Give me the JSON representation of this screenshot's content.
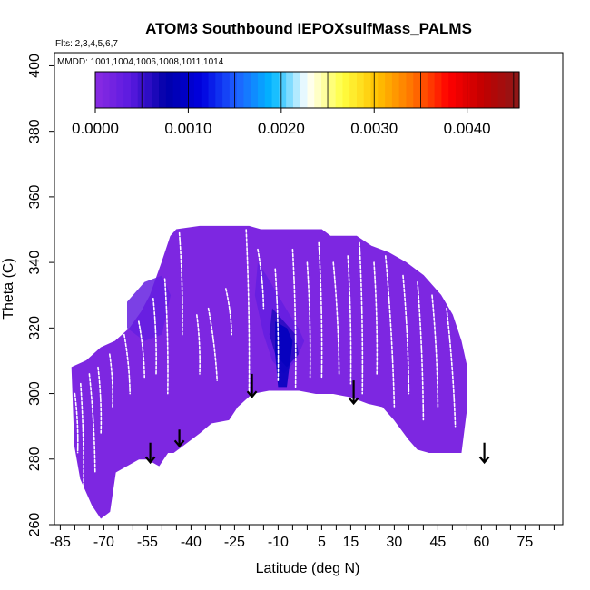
{
  "chart_data": {
    "type": "heatmap",
    "title": "ATOM3 Southbound IEPOXsulfMass_PALMS",
    "flights_label": "Flts: 2,3,4,5,6,7",
    "dates_label": "MMDD: 1001,1004,1006,1008,1011,1014",
    "xlabel": "Latitude (deg N)",
    "ylabel": "Theta (C)",
    "xlim": [
      -87,
      88
    ],
    "ylim": [
      260,
      404
    ],
    "x_tick_labels": [
      "-85",
      "-70",
      "-55",
      "-40",
      "-25",
      "-10",
      "5",
      "15",
      "30",
      "45",
      "60",
      "75"
    ],
    "x_tick_values": [
      -85,
      -70,
      -55,
      -40,
      -25,
      -10,
      5,
      15,
      30,
      45,
      60,
      75
    ],
    "x_minor_step": 5,
    "y_tick_labels": [
      "260",
      "280",
      "300",
      "320",
      "340",
      "360",
      "380",
      "400"
    ],
    "y_tick_values": [
      260,
      280,
      300,
      320,
      340,
      360,
      380,
      400
    ],
    "colorbar": {
      "range": [
        0,
        0.00456
      ],
      "tick_labels": [
        "0.0000",
        "0.0010",
        "0.0020",
        "0.0030",
        "0.0040"
      ],
      "tick_values": [
        0,
        0.001,
        0.002,
        0.003,
        0.004
      ],
      "boundaries": [
        0,
        0.0005,
        0.001,
        0.0015,
        0.002,
        0.0025,
        0.003,
        0.0035,
        0.004,
        0.0045
      ],
      "colors": [
        "#8a2be2",
        "#5a1ae0",
        "#0000a8",
        "#0000e0",
        "#1e60ff",
        "#00b8ff",
        "#ffffff",
        "#ffff40",
        "#ffc000",
        "#ff7000",
        "#ff0000",
        "#c00000",
        "#8b1a1a"
      ]
    },
    "field": {
      "base_value": 0.0001,
      "base_color": "#8a2be2",
      "bottom_boundary": [
        [
          -80,
          284
        ],
        [
          -78,
          274
        ],
        [
          -76,
          270
        ],
        [
          -74,
          266
        ],
        [
          -71,
          262
        ],
        [
          -68,
          264
        ],
        [
          -66,
          276
        ],
        [
          -62,
          278
        ],
        [
          -58,
          280
        ],
        [
          -55,
          280
        ],
        [
          -51,
          278
        ],
        [
          -48,
          282
        ],
        [
          -46,
          282
        ],
        [
          -43,
          284
        ],
        [
          -37,
          288
        ],
        [
          -33,
          291
        ],
        [
          -27,
          292
        ],
        [
          -24,
          296
        ],
        [
          -19,
          300
        ],
        [
          -13,
          301
        ],
        [
          -3,
          301
        ],
        [
          3,
          300
        ],
        [
          9,
          300
        ],
        [
          15,
          299
        ],
        [
          21,
          297
        ],
        [
          26,
          296
        ],
        [
          30,
          292
        ],
        [
          35,
          286
        ],
        [
          38,
          283
        ],
        [
          42,
          282
        ],
        [
          53,
          282
        ]
      ],
      "top_boundary": [
        [
          -81,
          308
        ],
        [
          -76,
          310
        ],
        [
          -71,
          314
        ],
        [
          -66,
          316
        ],
        [
          -61,
          320
        ],
        [
          -57,
          325
        ],
        [
          -54,
          330
        ],
        [
          -50,
          340
        ],
        [
          -47,
          348
        ],
        [
          -45,
          350
        ],
        [
          -37,
          351
        ],
        [
          -20,
          351
        ],
        [
          -16,
          350
        ],
        [
          5,
          350
        ],
        [
          8,
          348
        ],
        [
          17,
          348
        ],
        [
          22,
          345
        ],
        [
          28,
          343
        ],
        [
          34,
          340
        ],
        [
          40,
          336
        ],
        [
          46,
          330
        ],
        [
          50,
          324
        ],
        [
          53,
          316
        ],
        [
          55,
          308
        ],
        [
          55,
          296
        ],
        [
          53,
          282
        ]
      ],
      "enhanced_regions": [
        {
          "value": 0.0003,
          "polygon": [
            [
              -17,
              340
            ],
            [
              -14,
              336
            ],
            [
              -10,
              330
            ],
            [
              -6,
              324
            ],
            [
              -3,
              320
            ],
            [
              -1,
              316
            ],
            [
              -4,
              310
            ],
            [
              -8,
              306
            ],
            [
              -12,
              310
            ],
            [
              -15,
              318
            ],
            [
              -18,
              330
            ]
          ]
        },
        {
          "value": 0.0006,
          "polygon": [
            [
              -12,
              326
            ],
            [
              -8,
              322
            ],
            [
              -4,
              318
            ],
            [
              -3,
              312
            ],
            [
              -7,
              308
            ],
            [
              -11,
              312
            ],
            [
              -13,
              318
            ]
          ]
        },
        {
          "value": 0.0009,
          "polygon": [
            [
              -11,
              322
            ],
            [
              -7,
              320
            ],
            [
              -5,
              316
            ],
            [
              -7,
              302
            ],
            [
              -10,
              302
            ],
            [
              -11,
              312
            ]
          ]
        },
        {
          "value": 0.0003,
          "polygon": [
            [
              -62,
              328
            ],
            [
              -56,
              334
            ],
            [
              -50,
              336
            ],
            [
              -47,
              330
            ],
            [
              -50,
              318
            ],
            [
              -56,
              316
            ],
            [
              -62,
              320
            ]
          ]
        }
      ],
      "flight_track_segments": [
        [
          [
            -80,
            300
          ],
          [
            -79,
            282
          ]
        ],
        [
          [
            -78,
            303
          ],
          [
            -77,
            270
          ]
        ],
        [
          [
            -75,
            306
          ],
          [
            -73,
            276
          ]
        ],
        [
          [
            -72,
            308
          ],
          [
            -71,
            288
          ]
        ],
        [
          [
            -68,
            312
          ],
          [
            -67,
            296
          ]
        ],
        [
          [
            -63,
            318
          ],
          [
            -61,
            300
          ]
        ],
        [
          [
            -58,
            322
          ],
          [
            -56,
            305
          ]
        ],
        [
          [
            -53,
            329
          ],
          [
            -52,
            306
          ]
        ],
        [
          [
            -49,
            335
          ],
          [
            -48,
            300
          ]
        ],
        [
          [
            -44,
            349
          ],
          [
            -43,
            318
          ]
        ],
        [
          [
            -38,
            324
          ],
          [
            -37,
            306
          ]
        ],
        [
          [
            -34,
            326
          ],
          [
            -31,
            304
          ]
        ],
        [
          [
            -28,
            332
          ],
          [
            -26,
            318
          ]
        ],
        [
          [
            -21,
            350
          ],
          [
            -20,
            300
          ]
        ],
        [
          [
            -17,
            344
          ],
          [
            -15,
            326
          ]
        ],
        [
          [
            -11,
            338
          ],
          [
            -10,
            304
          ]
        ],
        [
          [
            -5,
            344
          ],
          [
            -4,
            302
          ]
        ],
        [
          [
            0,
            340
          ],
          [
            1,
            305
          ]
        ],
        [
          [
            4,
            346
          ],
          [
            5,
            305
          ]
        ],
        [
          [
            9,
            340
          ],
          [
            11,
            306
          ]
        ],
        [
          [
            14,
            342
          ],
          [
            15,
            303
          ]
        ],
        [
          [
            18,
            346
          ],
          [
            19,
            300
          ]
        ],
        [
          [
            23,
            340
          ],
          [
            24,
            306
          ]
        ],
        [
          [
            27,
            342
          ],
          [
            30,
            296
          ]
        ],
        [
          [
            33,
            336
          ],
          [
            35,
            300
          ]
        ],
        [
          [
            38,
            334
          ],
          [
            40,
            292
          ]
        ],
        [
          [
            43,
            330
          ],
          [
            45,
            296
          ]
        ],
        [
          [
            48,
            326
          ],
          [
            51,
            290
          ]
        ]
      ]
    },
    "arrows": [
      {
        "lat": -54,
        "theta_top": 285,
        "theta_bottom": 279
      },
      {
        "lat": -44,
        "theta_top": 289,
        "theta_bottom": 284
      },
      {
        "lat": -19,
        "theta_top": 306,
        "theta_bottom": 299
      },
      {
        "lat": 16,
        "theta_top": 304,
        "theta_bottom": 297
      },
      {
        "lat": 61,
        "theta_top": 285,
        "theta_bottom": 279
      }
    ]
  }
}
